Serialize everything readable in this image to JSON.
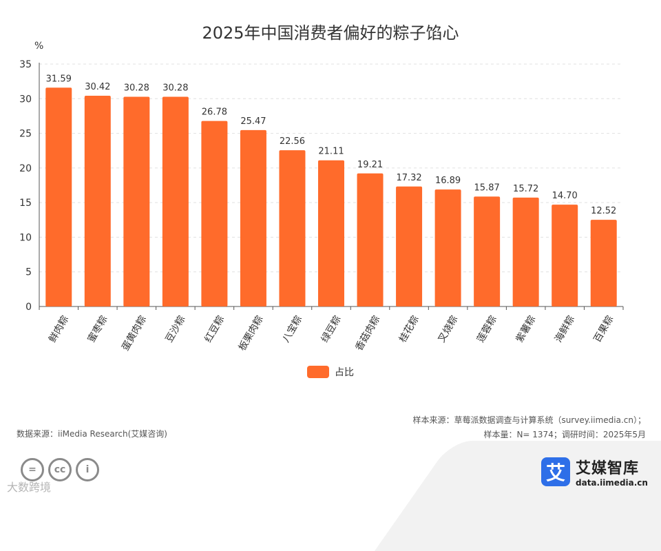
{
  "chart_data": {
    "type": "bar",
    "title": "2025年中国消费者偏好的粽子馅心",
    "ylabel": "%",
    "xlabel": "",
    "ylim": [
      0,
      35
    ],
    "yticks": [
      0,
      5,
      10,
      15,
      20,
      25,
      30,
      35
    ],
    "grid": true,
    "categories": [
      "鲜肉粽",
      "蜜枣粽",
      "蛋黄肉粽",
      "豆沙粽",
      "红豆粽",
      "板栗肉粽",
      "八宝粽",
      "绿豆粽",
      "香菇肉粽",
      "桂花粽",
      "叉烧粽",
      "莲蓉粽",
      "紫薯粽",
      "海鲜粽",
      "百果粽"
    ],
    "series": [
      {
        "name": "占比",
        "color": "#ff6b2b",
        "values": [
          31.59,
          30.42,
          30.28,
          30.28,
          26.78,
          25.47,
          22.56,
          21.11,
          19.21,
          17.32,
          16.89,
          15.87,
          15.72,
          14.7,
          12.52
        ],
        "labels": [
          "31.59",
          "30.42",
          "30.28",
          "30.28",
          "26.78",
          "25.47",
          "22.56",
          "21.11",
          "19.21",
          "17.32",
          "16.89",
          "15.87",
          "15.72",
          "14.70",
          "12.52"
        ]
      }
    ],
    "legend_position": "bottom-center"
  },
  "source_left": "数据来源：iiMedia Research(艾媒咨询)",
  "source_right_line1": "样本来源：草莓派数据调查与计算系统（survey.iimedia.cn）；",
  "source_right_line2": "样本量：N= 1374；调研时间：2025年5月",
  "brand": {
    "name": "艾媒智库",
    "url": "data.iimedia.cn",
    "logo_char": "艾",
    "color": "#2e6fe8"
  },
  "cc_icons": [
    "=",
    "cc",
    "i"
  ],
  "watermark": "大数跨境"
}
